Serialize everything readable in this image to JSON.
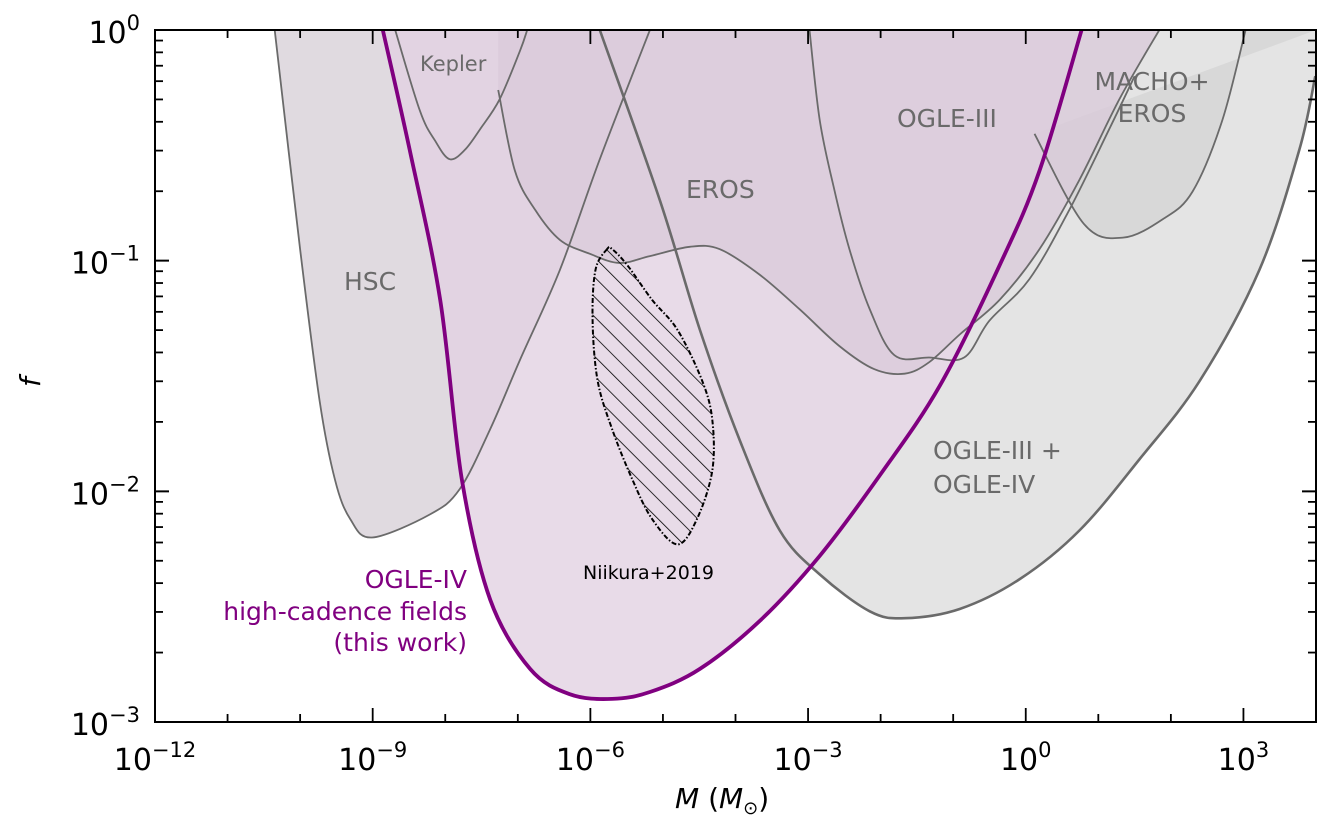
{
  "chart_data": {
    "type": "area",
    "title": "",
    "xlabel": "M (M_⊙)",
    "xlabel_parts": {
      "var": "M",
      "open": " (",
      "unit": "M",
      "sub": "⊙",
      "close": ")"
    },
    "ylabel": "f",
    "xscale": "log",
    "yscale": "log",
    "xlim_log10": [
      -12,
      4
    ],
    "ylim_log10": [
      -3,
      0
    ],
    "grid": false,
    "x_ticks": [
      {
        "log10": -12,
        "base": "10",
        "exp": "−12"
      },
      {
        "log10": -9,
        "base": "10",
        "exp": "−9"
      },
      {
        "log10": -6,
        "base": "10",
        "exp": "−6"
      },
      {
        "log10": -3,
        "base": "10",
        "exp": "−3"
      },
      {
        "log10": 0,
        "base": "10",
        "exp": "0"
      },
      {
        "log10": 3,
        "base": "10",
        "exp": "3"
      }
    ],
    "y_ticks": [
      {
        "log10": 0,
        "base": "10",
        "exp": "0"
      },
      {
        "log10": -1,
        "base": "10",
        "exp": "−1"
      },
      {
        "log10": -2,
        "base": "10",
        "exp": "−2"
      },
      {
        "log10": -3,
        "base": "10",
        "exp": "−3"
      }
    ],
    "colors": {
      "this_work_line": "#800080",
      "this_work_fill": "#e6d7e6",
      "this_work_overlap_fill": "#d9c9d9",
      "other_fill": "#e4e4e4",
      "macho_fill": "#d8d8d8",
      "other_line": "#6a6a6a",
      "label_gray": "#6a6a6a"
    },
    "series": [
      {
        "name": "OGLE-III + OGLE-IV",
        "label_lines": [
          "OGLE-III +",
          "OGLE-IV"
        ],
        "style": "thick-gray",
        "points_log10": [
          [
            -5.87,
            0
          ],
          [
            -5.04,
            -0.74
          ],
          [
            -4.49,
            -1.3
          ],
          [
            -3.94,
            -1.78
          ],
          [
            -3.39,
            -2.17
          ],
          [
            -2.84,
            -2.36
          ],
          [
            -2.15,
            -2.52
          ],
          [
            -1.67,
            -2.55
          ],
          [
            -0.91,
            -2.51
          ],
          [
            -0.08,
            -2.38
          ],
          [
            0.74,
            -2.17
          ],
          [
            1.57,
            -1.86
          ],
          [
            2.4,
            -1.52
          ],
          [
            3.22,
            -1.04
          ],
          [
            3.77,
            -0.52
          ],
          [
            3.99,
            -0.2
          ]
        ]
      },
      {
        "name": "HSC",
        "label_lines": [
          "HSC"
        ],
        "style": "thin-gray",
        "points_log10": [
          [
            -10.35,
            0
          ],
          [
            -10.0,
            -0.95
          ],
          [
            -9.73,
            -1.61
          ],
          [
            -9.52,
            -1.95
          ],
          [
            -9.31,
            -2.12
          ],
          [
            -9.01,
            -2.2
          ],
          [
            -8.21,
            -2.1
          ],
          [
            -7.8,
            -1.99
          ],
          [
            -7.38,
            -1.73
          ],
          [
            -6.97,
            -1.43
          ],
          [
            -6.42,
            -1.04
          ],
          [
            -5.87,
            -0.56
          ],
          [
            -5.18,
            0
          ]
        ]
      },
      {
        "name": "MACHO+EROS",
        "label_lines": [
          "MACHO+",
          "EROS"
        ],
        "style": "thin-gray",
        "points_log10": [
          [
            0.12,
            -0.45
          ],
          [
            0.8,
            -0.84
          ],
          [
            1.34,
            -0.9
          ],
          [
            1.89,
            -0.82
          ],
          [
            2.3,
            -0.7
          ],
          [
            2.71,
            -0.39
          ],
          [
            3.03,
            0
          ]
        ]
      },
      {
        "name": "EROS",
        "label_lines": [
          "EROS"
        ],
        "style": "thin-gray",
        "points_log10": [
          [
            -7.27,
            -0.26
          ],
          [
            -7.04,
            -0.61
          ],
          [
            -6.76,
            -0.78
          ],
          [
            -6.42,
            -0.91
          ],
          [
            -6.01,
            -0.97
          ],
          [
            -5.6,
            -1.01
          ],
          [
            -5.18,
            -0.98
          ],
          [
            -4.63,
            -0.94
          ],
          [
            -4.22,
            -0.95
          ],
          [
            -3.67,
            -1.06
          ],
          [
            -3.12,
            -1.21
          ],
          [
            -2.57,
            -1.37
          ],
          [
            -2.09,
            -1.47
          ],
          [
            -1.67,
            -1.49
          ],
          [
            -1.33,
            -1.44
          ],
          [
            -0.91,
            -1.32
          ],
          [
            -0.36,
            -1.17
          ],
          [
            0.19,
            -0.95
          ],
          [
            0.74,
            -0.65
          ],
          [
            1.29,
            -0.3
          ],
          [
            1.84,
            0
          ]
        ]
      },
      {
        "name": "OGLE-III",
        "label_lines": [
          "OGLE-III"
        ],
        "style": "thin-gray",
        "points_log10": [
          [
            -2.98,
            0
          ],
          [
            -2.84,
            -0.39
          ],
          [
            -2.64,
            -0.69
          ],
          [
            -2.43,
            -0.95
          ],
          [
            -2.15,
            -1.21
          ],
          [
            -1.81,
            -1.41
          ],
          [
            -1.33,
            -1.42
          ],
          [
            -0.85,
            -1.42
          ],
          [
            -0.5,
            -1.26
          ],
          [
            0.05,
            -1.08
          ],
          [
            0.6,
            -0.78
          ],
          [
            1.15,
            -0.43
          ],
          [
            1.5,
            -0.2
          ]
        ]
      },
      {
        "name": "Kepler",
        "label_lines": [
          "Kepler"
        ],
        "style": "thin-gray",
        "points_log10": [
          [
            -8.69,
            0
          ],
          [
            -8.35,
            -0.35
          ],
          [
            -8.14,
            -0.48
          ],
          [
            -7.94,
            -0.56
          ],
          [
            -7.73,
            -0.52
          ],
          [
            -7.52,
            -0.43
          ],
          [
            -7.25,
            -0.3
          ],
          [
            -6.97,
            -0.09
          ],
          [
            -6.87,
            0
          ]
        ]
      },
      {
        "name": "OGLE-IV high-cadence fields (this work)",
        "label_lines": [
          "OGLE-IV",
          "high-cadence fields",
          "(this work)"
        ],
        "style": "purple",
        "points_log10": [
          [
            -8.86,
            0
          ],
          [
            -8.49,
            -0.52
          ],
          [
            -8.07,
            -1.17
          ],
          [
            -7.77,
            -1.95
          ],
          [
            -7.38,
            -2.47
          ],
          [
            -6.83,
            -2.77
          ],
          [
            -6.28,
            -2.88
          ],
          [
            -5.7,
            -2.9
          ],
          [
            -5.18,
            -2.87
          ],
          [
            -4.49,
            -2.77
          ],
          [
            -3.66,
            -2.56
          ],
          [
            -2.84,
            -2.28
          ],
          [
            -2.01,
            -1.93
          ],
          [
            -1.18,
            -1.54
          ],
          [
            -0.36,
            -1.02
          ],
          [
            0.19,
            -0.61
          ],
          [
            0.77,
            0
          ]
        ]
      },
      {
        "name": "Niikura+2019",
        "label_lines": [
          "Niikura+2019"
        ],
        "style": "hatched",
        "points_log10": [
          [
            -5.77,
            -0.95
          ],
          [
            -5.93,
            -1.04
          ],
          [
            -5.97,
            -1.26
          ],
          [
            -5.9,
            -1.52
          ],
          [
            -5.7,
            -1.73
          ],
          [
            -5.42,
            -1.95
          ],
          [
            -5.15,
            -2.12
          ],
          [
            -4.8,
            -2.23
          ],
          [
            -4.53,
            -2.12
          ],
          [
            -4.32,
            -1.91
          ],
          [
            -4.32,
            -1.69
          ],
          [
            -4.46,
            -1.52
          ],
          [
            -4.8,
            -1.3
          ],
          [
            -5.15,
            -1.17
          ],
          [
            -5.49,
            -1.02
          ],
          [
            -5.7,
            -0.95
          ]
        ]
      }
    ]
  }
}
